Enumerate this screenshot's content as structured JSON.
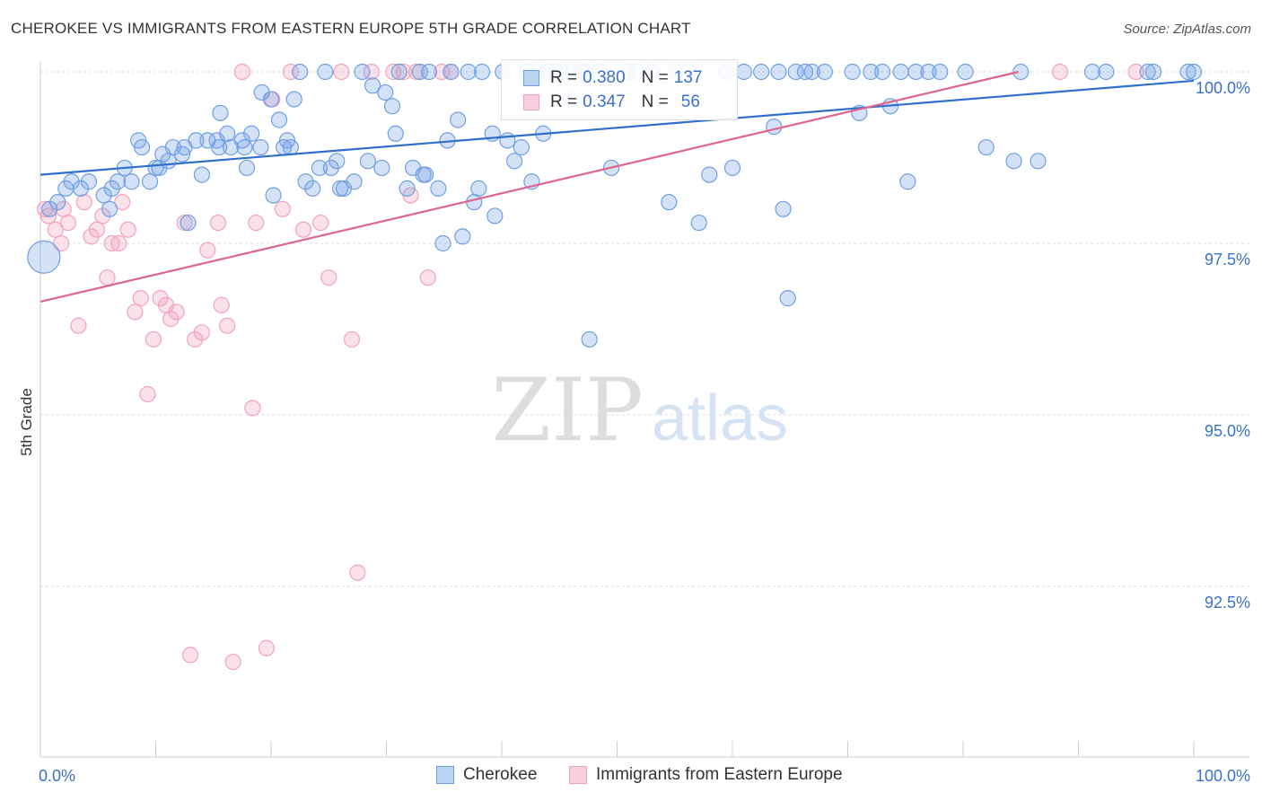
{
  "header": {
    "title": "CHEROKEE VS IMMIGRANTS FROM EASTERN EUROPE 5TH GRADE CORRELATION CHART",
    "source": "Source: ZipAtlas.com"
  },
  "watermark": {
    "zip": "ZIP",
    "atlas": "atlas"
  },
  "legend": {
    "rows": [
      {
        "r_label": "R =",
        "r_value": "0.380",
        "n_label": "N =",
        "n_value": "137"
      },
      {
        "r_label": "R =",
        "r_value": "0.347",
        "n_label": "N =",
        "n_value": "56"
      }
    ]
  },
  "chart_data": {
    "type": "scatter",
    "title": "CHEROKEE VS IMMIGRANTS FROM EASTERN EUROPE 5TH GRADE CORRELATION CHART",
    "ylabel": "5th Grade",
    "xlabel": "",
    "xlim": [
      0,
      100
    ],
    "ylim": [
      90.5,
      100.25
    ],
    "x_tick_labels": [
      "0.0%",
      "100.0%"
    ],
    "y_ticks": [
      92.5,
      95.0,
      97.5,
      100.0
    ],
    "y_tick_labels": [
      "92.5%",
      "95.0%",
      "97.5%",
      "100.0%"
    ],
    "grid": true,
    "legend_position": "top-center",
    "colors": {
      "cherokee": "#6f9fe3",
      "cherokee_line": "#2f6fcc",
      "immigrants": "#f2a3bb",
      "immigrants_line": "#e0648f",
      "tick_label": "#3a70c8"
    },
    "series": [
      {
        "name": "Cherokee",
        "r": 0.38,
        "n": 137,
        "trend": [
          [
            0,
            98.5
          ],
          [
            100,
            99.87
          ]
        ],
        "points": [
          [
            0.3,
            97.3
          ],
          [
            0.8,
            98.0
          ],
          [
            1.5,
            98.1
          ],
          [
            2.2,
            98.3
          ],
          [
            2.7,
            98.4
          ],
          [
            3.5,
            98.3
          ],
          [
            4.2,
            98.4
          ],
          [
            5.5,
            98.2
          ],
          [
            6.0,
            98.0
          ],
          [
            6.2,
            98.3
          ],
          [
            6.7,
            98.4
          ],
          [
            7.3,
            98.6
          ],
          [
            7.9,
            98.4
          ],
          [
            8.5,
            99.0
          ],
          [
            8.8,
            98.9
          ],
          [
            9.5,
            98.4
          ],
          [
            10.0,
            98.6
          ],
          [
            10.3,
            98.6
          ],
          [
            10.6,
            98.8
          ],
          [
            11.1,
            98.7
          ],
          [
            11.5,
            98.9
          ],
          [
            12.3,
            98.8
          ],
          [
            12.5,
            98.9
          ],
          [
            12.8,
            97.8
          ],
          [
            13.5,
            99.0
          ],
          [
            14.0,
            98.5
          ],
          [
            14.5,
            99.0
          ],
          [
            15.3,
            99.0
          ],
          [
            15.5,
            98.9
          ],
          [
            15.6,
            99.4
          ],
          [
            16.2,
            99.1
          ],
          [
            16.5,
            98.9
          ],
          [
            17.5,
            99.0
          ],
          [
            17.7,
            98.9
          ],
          [
            17.9,
            98.6
          ],
          [
            18.3,
            99.1
          ],
          [
            19.1,
            98.9
          ],
          [
            19.2,
            99.7
          ],
          [
            20.0,
            99.6
          ],
          [
            20.2,
            98.2
          ],
          [
            20.7,
            99.3
          ],
          [
            21.1,
            98.9
          ],
          [
            21.4,
            99.0
          ],
          [
            21.7,
            98.9
          ],
          [
            22.0,
            99.6
          ],
          [
            22.5,
            100.0
          ],
          [
            23.0,
            98.4
          ],
          [
            23.6,
            98.3
          ],
          [
            24.2,
            98.6
          ],
          [
            24.7,
            100.0
          ],
          [
            25.2,
            98.6
          ],
          [
            25.7,
            98.7
          ],
          [
            26.0,
            98.3
          ],
          [
            26.3,
            98.3
          ],
          [
            27.2,
            98.4
          ],
          [
            27.9,
            100.0
          ],
          [
            28.4,
            98.7
          ],
          [
            28.8,
            99.8
          ],
          [
            29.6,
            98.6
          ],
          [
            29.9,
            99.7
          ],
          [
            30.5,
            99.5
          ],
          [
            30.8,
            99.1
          ],
          [
            31.1,
            100.0
          ],
          [
            31.8,
            98.3
          ],
          [
            32.3,
            98.6
          ],
          [
            32.9,
            100.0
          ],
          [
            33.2,
            98.5
          ],
          [
            33.4,
            98.5
          ],
          [
            33.7,
            100.0
          ],
          [
            34.5,
            98.3
          ],
          [
            34.9,
            97.5
          ],
          [
            35.3,
            99.0
          ],
          [
            35.6,
            100.0
          ],
          [
            36.2,
            99.3
          ],
          [
            36.6,
            97.6
          ],
          [
            37.1,
            100.0
          ],
          [
            37.6,
            98.1
          ],
          [
            38.0,
            98.3
          ],
          [
            38.3,
            100.0
          ],
          [
            39.2,
            99.1
          ],
          [
            39.4,
            97.9
          ],
          [
            40.1,
            100.0
          ],
          [
            40.5,
            99.0
          ],
          [
            41.1,
            98.7
          ],
          [
            41.7,
            98.9
          ],
          [
            42.2,
            100.0
          ],
          [
            42.6,
            98.4
          ],
          [
            43.1,
            100.0
          ],
          [
            43.6,
            99.1
          ],
          [
            44.1,
            100.0
          ],
          [
            44.7,
            100.0
          ],
          [
            45.2,
            100.0
          ],
          [
            46.0,
            99.6
          ],
          [
            46.2,
            100.0
          ],
          [
            46.9,
            100.0
          ],
          [
            47.2,
            100.0
          ],
          [
            47.6,
            96.1
          ],
          [
            48.5,
            100.0
          ],
          [
            49.5,
            98.6
          ],
          [
            51.0,
            100.0
          ],
          [
            51.7,
            100.0
          ],
          [
            53.0,
            100.0
          ],
          [
            54.5,
            98.1
          ],
          [
            55.0,
            100.0
          ],
          [
            56.2,
            100.0
          ],
          [
            57.1,
            97.8
          ],
          [
            58.0,
            98.5
          ],
          [
            59.5,
            100.0
          ],
          [
            60.0,
            98.6
          ],
          [
            61.0,
            100.0
          ],
          [
            62.5,
            100.0
          ],
          [
            63.6,
            99.2
          ],
          [
            64.0,
            100.0
          ],
          [
            64.4,
            98.0
          ],
          [
            64.8,
            96.7
          ],
          [
            65.5,
            100.0
          ],
          [
            66.3,
            100.0
          ],
          [
            66.9,
            100.0
          ],
          [
            68.0,
            100.0
          ],
          [
            70.4,
            100.0
          ],
          [
            71.0,
            99.4
          ],
          [
            72.0,
            100.0
          ],
          [
            73.0,
            100.0
          ],
          [
            73.7,
            99.5
          ],
          [
            74.6,
            100.0
          ],
          [
            75.2,
            98.4
          ],
          [
            75.9,
            100.0
          ],
          [
            77.0,
            100.0
          ],
          [
            78.0,
            100.0
          ],
          [
            80.2,
            100.0
          ],
          [
            82.0,
            98.9
          ],
          [
            84.4,
            98.7
          ],
          [
            85.0,
            100.0
          ],
          [
            86.5,
            98.7
          ],
          [
            91.2,
            100.0
          ],
          [
            92.4,
            100.0
          ],
          [
            96.0,
            100.0
          ],
          [
            96.5,
            100.0
          ],
          [
            99.5,
            100.0
          ],
          [
            100.0,
            100.0
          ]
        ]
      },
      {
        "name": "Immigrants from Eastern Europe",
        "r": 0.347,
        "n": 56,
        "trend": [
          [
            0,
            96.65
          ],
          [
            100,
            100.6
          ]
        ],
        "points": [
          [
            0.4,
            98.0
          ],
          [
            0.7,
            97.9
          ],
          [
            1.3,
            97.7
          ],
          [
            1.8,
            97.5
          ],
          [
            2.0,
            98.0
          ],
          [
            2.4,
            97.8
          ],
          [
            3.3,
            96.3
          ],
          [
            3.8,
            98.1
          ],
          [
            4.4,
            97.6
          ],
          [
            4.9,
            97.7
          ],
          [
            5.4,
            97.9
          ],
          [
            5.8,
            97.0
          ],
          [
            6.2,
            97.5
          ],
          [
            6.8,
            97.5
          ],
          [
            7.1,
            98.1
          ],
          [
            7.6,
            97.7
          ],
          [
            8.2,
            96.5
          ],
          [
            8.7,
            96.7
          ],
          [
            9.3,
            95.3
          ],
          [
            9.8,
            96.1
          ],
          [
            10.4,
            96.7
          ],
          [
            10.9,
            96.6
          ],
          [
            11.3,
            96.4
          ],
          [
            11.8,
            96.5
          ],
          [
            12.5,
            97.8
          ],
          [
            13.0,
            91.5
          ],
          [
            13.4,
            96.1
          ],
          [
            14.0,
            96.2
          ],
          [
            14.5,
            97.4
          ],
          [
            15.4,
            97.8
          ],
          [
            15.7,
            96.6
          ],
          [
            16.2,
            96.3
          ],
          [
            16.7,
            91.4
          ],
          [
            17.5,
            100.0
          ],
          [
            18.4,
            95.1
          ],
          [
            18.7,
            97.8
          ],
          [
            19.6,
            91.6
          ],
          [
            20.1,
            99.6
          ],
          [
            21.0,
            98.0
          ],
          [
            21.7,
            100.0
          ],
          [
            22.8,
            97.7
          ],
          [
            24.3,
            97.8
          ],
          [
            25.0,
            97.0
          ],
          [
            26.1,
            100.0
          ],
          [
            27.0,
            96.1
          ],
          [
            27.5,
            92.7
          ],
          [
            28.7,
            100.0
          ],
          [
            30.6,
            100.0
          ],
          [
            31.5,
            100.0
          ],
          [
            32.1,
            98.2
          ],
          [
            32.6,
            100.0
          ],
          [
            33.6,
            97.0
          ],
          [
            34.8,
            100.0
          ],
          [
            35.6,
            100.0
          ],
          [
            88.4,
            100.0
          ],
          [
            95.0,
            100.0
          ]
        ]
      }
    ]
  }
}
